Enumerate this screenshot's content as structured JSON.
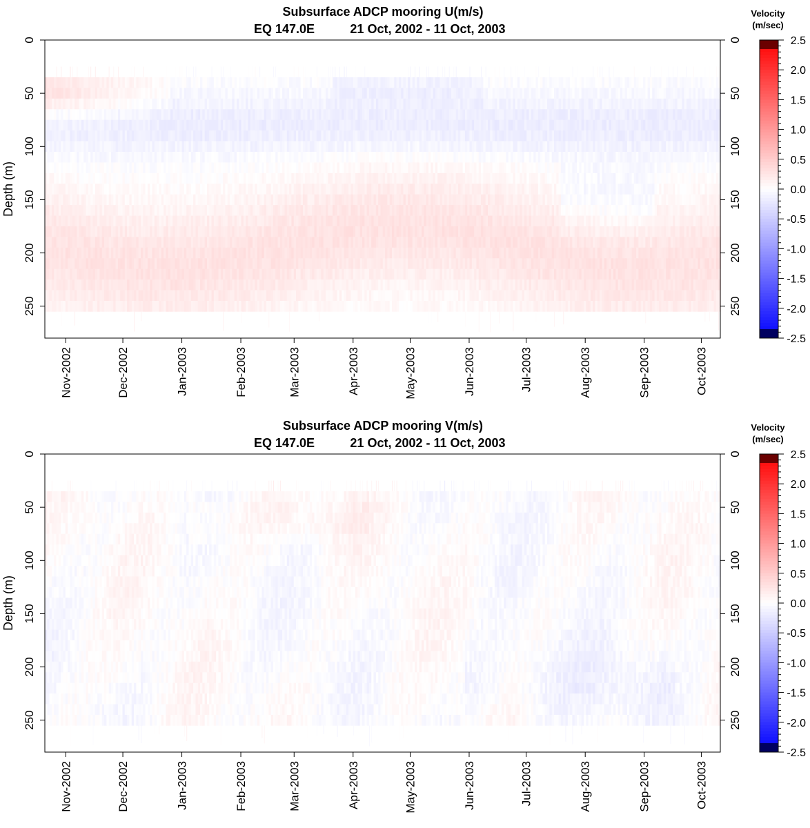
{
  "chart_data": [
    {
      "type": "heatmap",
      "title": "Subsurface ADCP mooring U(m/s)",
      "subtitle_location": "EQ 147.0E",
      "subtitle_dates": "21 Oct, 2002 - 11 Oct, 2003",
      "ylabel": "Depth (m)",
      "ylim": [
        0,
        280
      ],
      "y_inverted": true,
      "yticks": [
        "0",
        "50",
        "100",
        "150",
        "200",
        "250"
      ],
      "yticks_right": [
        "0",
        "50",
        "100",
        "150",
        "200",
        "250"
      ],
      "xticks": [
        "Nov-2002",
        "Dec-2002",
        "Jan-2003",
        "Feb-2003",
        "Mar-2003",
        "Apr-2003",
        "May-2003",
        "Jun-2003",
        "Jul-2003",
        "Aug-2003",
        "Sep-2003",
        "Oct-2003"
      ],
      "x_start": "2002-10-21",
      "x_end": "2003-10-11",
      "data_depth_range": [
        35,
        255
      ],
      "pattern": "eastward (red) flow 30-80 m Oct-Dec 2002; westward (blue) band 40-130 m most of the year; broad eastward undercurrent 110-255 m peaking ~0.5 m/s near 180-230 m",
      "colorbar": {
        "title_line1": "Velocity",
        "title_line2": "(m/sec)",
        "range": [
          -2.5,
          2.5
        ],
        "labels": [
          "2.5",
          "2.0",
          "1.5",
          "1.0",
          "0.5",
          "0.0",
          "-0.5",
          "-1.0",
          "-1.5",
          "-2.0",
          "-2.5"
        ]
      }
    },
    {
      "type": "heatmap",
      "title": "Subsurface ADCP mooring V(m/s)",
      "subtitle_location": "EQ 147.0E",
      "subtitle_dates": "21 Oct, 2002 - 11 Oct, 2003",
      "ylabel": "Depth (m)",
      "ylim": [
        0,
        280
      ],
      "y_inverted": true,
      "yticks": [
        "0",
        "50",
        "100",
        "150",
        "200",
        "250"
      ],
      "yticks_right": [
        "0",
        "50",
        "100",
        "150",
        "200",
        "250"
      ],
      "xticks": [
        "Nov-2002",
        "Dec-2002",
        "Jan-2003",
        "Feb-2003",
        "Mar-2003",
        "Apr-2003",
        "May-2003",
        "Jun-2003",
        "Jul-2003",
        "Aug-2003",
        "Sep-2003",
        "Oct-2003"
      ],
      "x_start": "2002-10-21",
      "x_end": "2003-10-11",
      "data_depth_range": [
        35,
        255
      ],
      "pattern": "weak meridional velocities mostly within +/-0.4 m/s; weak southward (blue) flow 180-250 m from Jun-Sep 2003",
      "colorbar": {
        "title_line1": "Velocity",
        "title_line2": "(m/sec)",
        "range": [
          -2.5,
          2.5
        ],
        "labels": [
          "2.5",
          "2.0",
          "1.5",
          "1.0",
          "0.5",
          "0.0",
          "-0.5",
          "-1.0",
          "-1.5",
          "-2.0",
          "-2.5"
        ]
      }
    }
  ]
}
